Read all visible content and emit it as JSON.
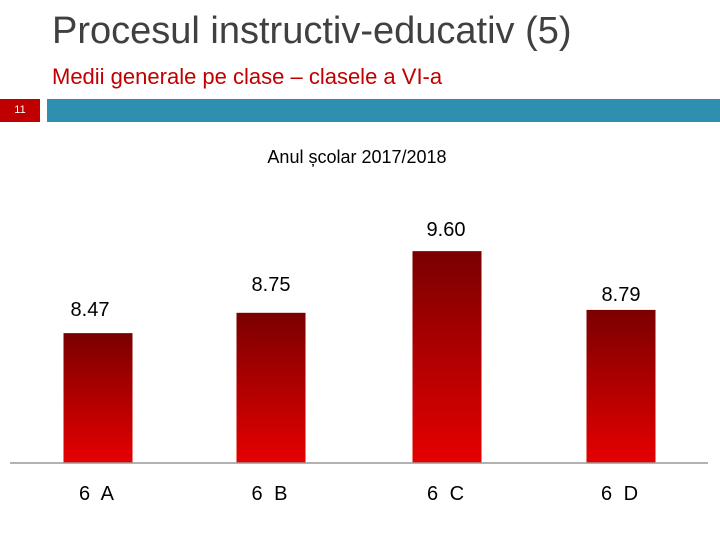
{
  "slide": {
    "title": "Procesul instructiv-educativ (5)",
    "subtitle": "Medii generale pe clase – clasele a VI-a",
    "number": "11",
    "accent_color": "#c00000",
    "rule_color": "#2e8fb0"
  },
  "chart_data": {
    "type": "bar",
    "title": "Anul școlar 2017/2018",
    "categories": [
      "6 A",
      "6 B",
      "6 C",
      "6 D"
    ],
    "values": [
      8.47,
      8.75,
      9.6,
      8.79
    ],
    "value_labels": [
      "8.47",
      "8.75",
      "9.60",
      "8.79"
    ],
    "xlabel": "",
    "ylabel": "",
    "ylim": [
      6.68,
      9.85
    ],
    "grid": false,
    "bar_color_top": "#7a0000",
    "bar_color_bottom": "#e60000"
  }
}
